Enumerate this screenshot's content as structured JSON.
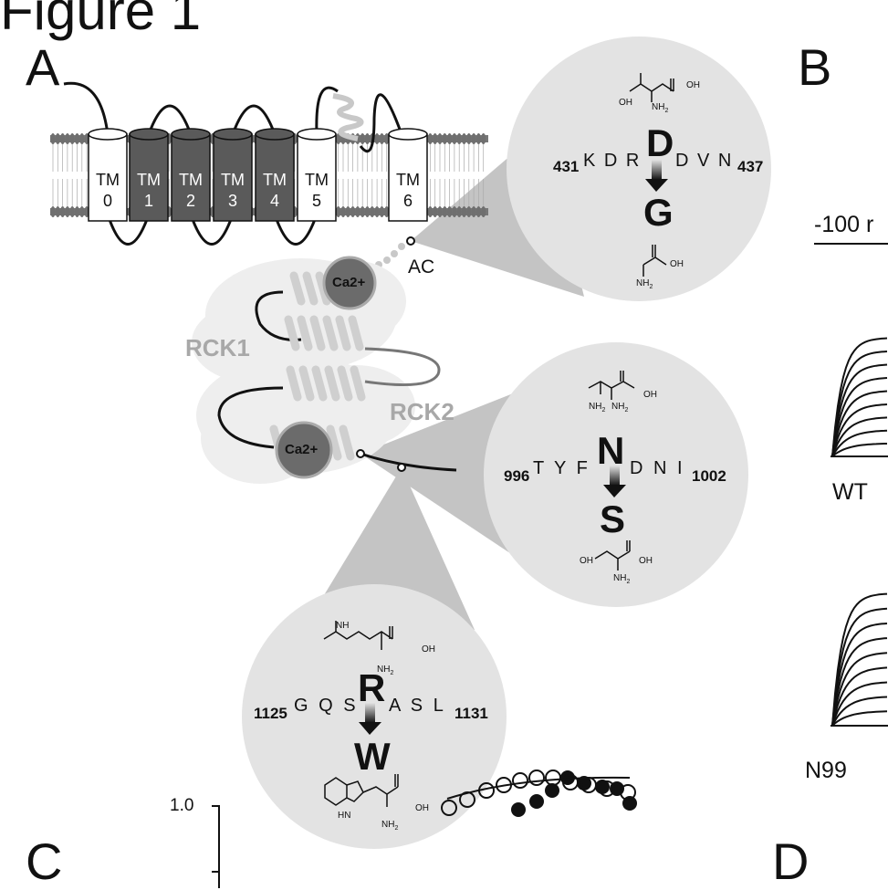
{
  "figure_title": "Figure 1",
  "panels": {
    "a": "A",
    "b": "B",
    "c": "C",
    "d": "D"
  },
  "tm_labels": [
    {
      "top": "TM",
      "num": "0"
    },
    {
      "top": "TM",
      "num": "1"
    },
    {
      "top": "TM",
      "num": "2"
    },
    {
      "top": "TM",
      "num": "3"
    },
    {
      "top": "TM",
      "num": "4"
    },
    {
      "top": "TM",
      "num": "5"
    },
    {
      "top": "TM",
      "num": "6"
    }
  ],
  "domains": {
    "ac": "AC",
    "rck1": "RCK1",
    "rck2": "RCK2",
    "ca": "Ca2+"
  },
  "mutations": {
    "d434g": {
      "start": "431",
      "before": "K D R",
      "aa": "D",
      "after": "D V N",
      "end": "437",
      "new": "G"
    },
    "n999s": {
      "start": "996",
      "before": "T Y F",
      "aa": "N",
      "after": "D N I",
      "end": "1002",
      "new": "S"
    },
    "r1128w": {
      "start": "1125",
      "before": "G Q S",
      "aa": "R",
      "after": "A S L",
      "end": "1131",
      "new": "W"
    }
  },
  "chem": {
    "oh": "OH",
    "nh2": "NH",
    "nh2_sub": "2",
    "hn": "HN",
    "h2n": "H",
    "nh": "NH",
    "n": "N",
    "o": "O",
    "h": "H"
  },
  "panel_b": {
    "voltage": "-100 r",
    "trace_wt": "WT",
    "trace_mut": "N99"
  },
  "panel_c": {
    "ytick_top": "1.0"
  },
  "colors": {
    "tm_dark": "#5a5a5a",
    "tm_light": "#ffffff",
    "zoom_bg": "#e3e3e3",
    "cone": "#bfbfbf",
    "rck": "#ececec",
    "ca": "#6b6b6b"
  }
}
